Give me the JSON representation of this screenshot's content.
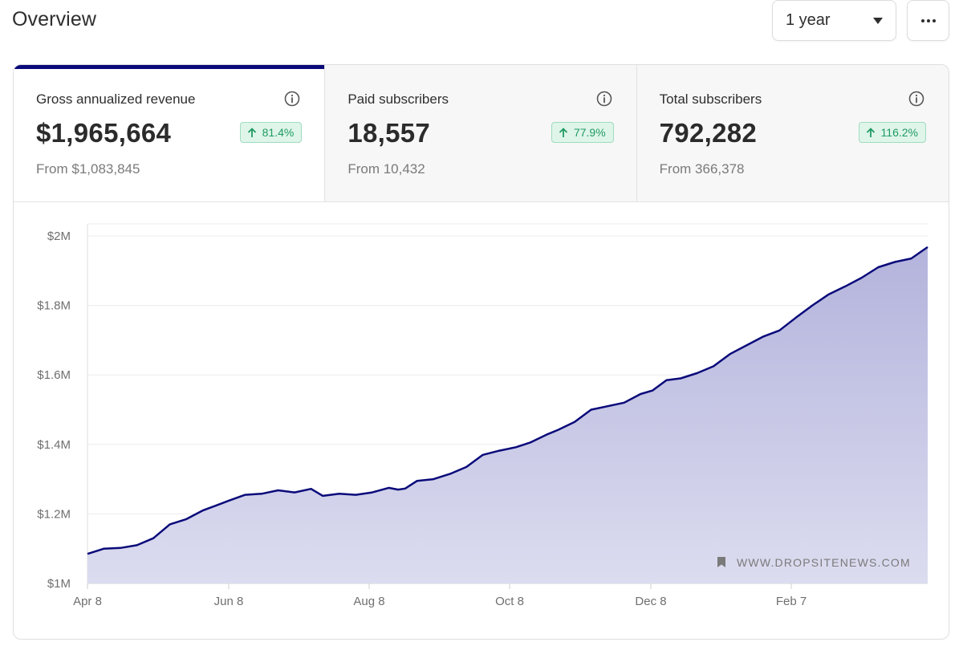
{
  "header": {
    "title": "Overview",
    "range_value": "1 year",
    "more_label": "..."
  },
  "stats": [
    {
      "label": "Gross annualized revenue",
      "value": "$1,965,664",
      "change": "81.4%",
      "from": "From $1,083,845",
      "active": true
    },
    {
      "label": "Paid subscribers",
      "value": "18,557",
      "change": "77.9%",
      "from": "From 10,432",
      "active": false
    },
    {
      "label": "Total subscribers",
      "value": "792,282",
      "change": "116.2%",
      "from": "From 366,378",
      "active": false
    }
  ],
  "colors": {
    "line": "#0a0a7a",
    "fill_top": "#b3b3dc",
    "fill_bottom": "#dcdcf0",
    "badge_bg": "#dff5ea",
    "badge_text": "#1f9a62"
  },
  "watermark": "WWW.DROPSITENEWS.COM",
  "chart_data": {
    "type": "area",
    "title": "",
    "xlabel": "",
    "ylabel": "",
    "ylim": [
      1000000,
      2000000
    ],
    "x_ticks": [
      "Apr 8",
      "Jun 8",
      "Aug 8",
      "Oct 8",
      "Dec 8",
      "Feb 7"
    ],
    "y_ticks": [
      {
        "value": 1000000,
        "label": "$1M"
      },
      {
        "value": 1200000,
        "label": "$1.2M"
      },
      {
        "value": 1400000,
        "label": "$1.4M"
      },
      {
        "value": 1600000,
        "label": "$1.6M"
      },
      {
        "value": 1800000,
        "label": "$1.8M"
      },
      {
        "value": 2000000,
        "label": "$2M"
      }
    ],
    "series": [
      {
        "name": "Gross annualized revenue",
        "x_days": [
          0,
          7,
          14,
          21,
          28,
          35,
          42,
          49,
          55,
          60,
          67,
          74,
          81,
          88,
          95,
          100,
          107,
          114,
          121,
          128,
          132,
          135,
          140,
          147,
          154,
          161,
          168,
          175,
          182,
          188,
          195,
          200,
          207,
          214,
          221,
          228,
          235,
          240,
          246,
          252,
          259,
          266,
          273,
          280,
          287,
          294,
          301,
          308,
          315,
          322,
          329,
          336,
          343,
          350,
          357
        ],
        "values": [
          1085000,
          1100000,
          1102000,
          1110000,
          1130000,
          1170000,
          1185000,
          1210000,
          1225000,
          1238000,
          1255000,
          1258000,
          1268000,
          1262000,
          1272000,
          1252000,
          1258000,
          1255000,
          1262000,
          1275000,
          1270000,
          1273000,
          1295000,
          1300000,
          1315000,
          1335000,
          1370000,
          1382000,
          1392000,
          1405000,
          1428000,
          1442000,
          1465000,
          1500000,
          1510000,
          1520000,
          1545000,
          1555000,
          1585000,
          1590000,
          1605000,
          1625000,
          1660000,
          1685000,
          1710000,
          1728000,
          1765000,
          1800000,
          1832000,
          1855000,
          1880000,
          1910000,
          1925000,
          1935000,
          1968000
        ]
      }
    ]
  }
}
